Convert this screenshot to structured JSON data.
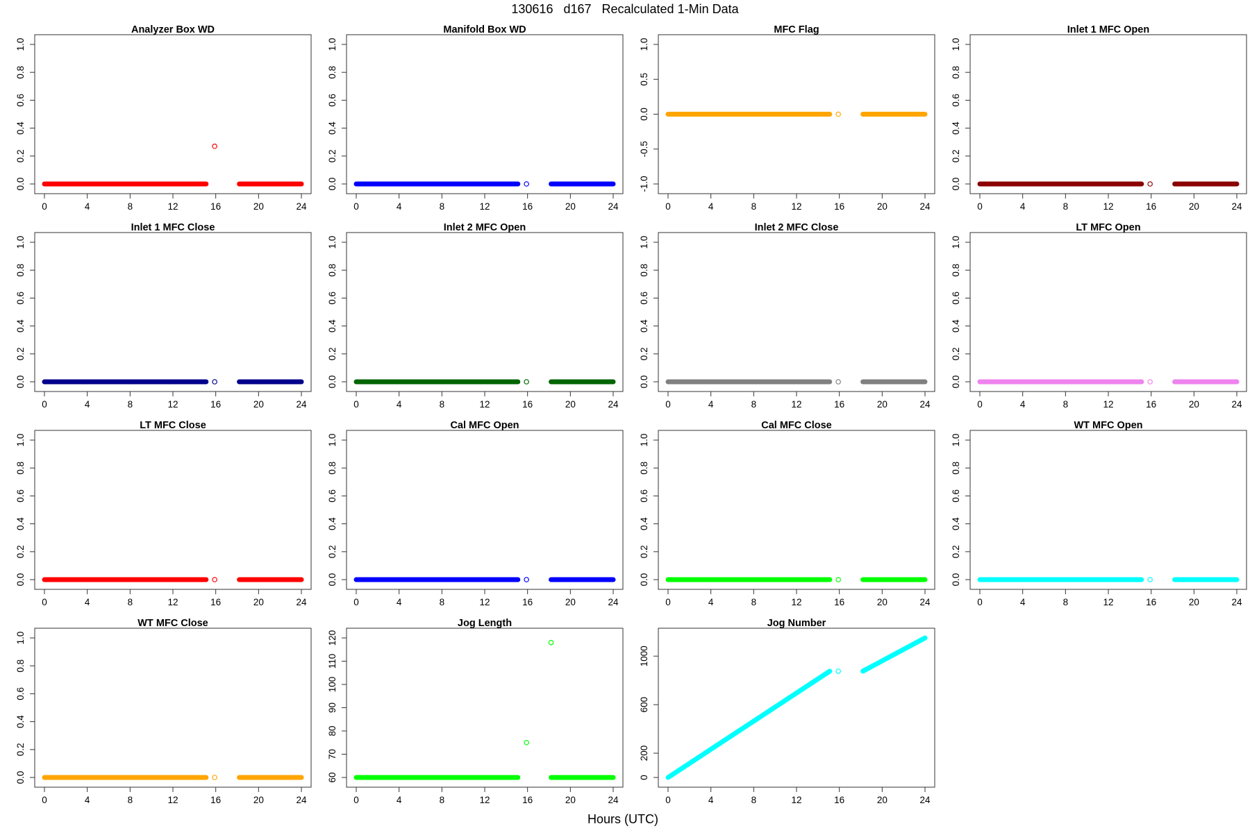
{
  "main_title": "130616   d167   Recalculated 1-Min Data",
  "xlabel": "Hours (UTC)",
  "chart_data": [
    {
      "type": "scatter",
      "title": "Analyzer Box WD",
      "color": "#FF0000",
      "xlim": [
        0,
        24
      ],
      "ylim": [
        0,
        1
      ],
      "xticks": [
        0,
        4,
        8,
        12,
        16,
        20,
        24
      ],
      "yticks": [
        0.0,
        0.2,
        0.4,
        0.6,
        0.8,
        1.0
      ],
      "ytick_labels": [
        "0.0",
        "0.2",
        "0.4",
        "0.6",
        "0.8",
        "1.0"
      ],
      "segments": [
        {
          "x": [
            0,
            15.1
          ],
          "y": [
            0,
            0
          ]
        },
        {
          "x": [
            18.2,
            24
          ],
          "y": [
            0,
            0
          ]
        }
      ],
      "points": [
        {
          "x": 15.9,
          "y": 0.27
        }
      ]
    },
    {
      "type": "scatter",
      "title": "Manifold Box WD",
      "color": "#0000FF",
      "xlim": [
        0,
        24
      ],
      "ylim": [
        0,
        1
      ],
      "xticks": [
        0,
        4,
        8,
        12,
        16,
        20,
        24
      ],
      "yticks": [
        0.0,
        0.2,
        0.4,
        0.6,
        0.8,
        1.0
      ],
      "ytick_labels": [
        "0.0",
        "0.2",
        "0.4",
        "0.6",
        "0.8",
        "1.0"
      ],
      "segments": [
        {
          "x": [
            0,
            15.1
          ],
          "y": [
            0,
            0
          ]
        },
        {
          "x": [
            18.2,
            24
          ],
          "y": [
            0,
            0
          ]
        }
      ],
      "points": [
        {
          "x": 15.9,
          "y": 0
        }
      ]
    },
    {
      "type": "scatter",
      "title": "MFC Flag",
      "color": "#FFA500",
      "xlim": [
        0,
        24
      ],
      "ylim": [
        -1,
        1
      ],
      "xticks": [
        0,
        4,
        8,
        12,
        16,
        20,
        24
      ],
      "yticks": [
        -1.0,
        -0.5,
        0.0,
        0.5,
        1.0
      ],
      "ytick_labels": [
        "-1.0",
        "-0.5",
        "0.0",
        "0.5",
        "1.0"
      ],
      "segments": [
        {
          "x": [
            0,
            15.1
          ],
          "y": [
            0,
            0
          ]
        },
        {
          "x": [
            18.2,
            24
          ],
          "y": [
            0,
            0
          ]
        }
      ],
      "points": [
        {
          "x": 15.9,
          "y": 0
        }
      ]
    },
    {
      "type": "scatter",
      "title": "Inlet 1 MFC Open",
      "color": "#8B0000",
      "xlim": [
        0,
        24
      ],
      "ylim": [
        0,
        1
      ],
      "xticks": [
        0,
        4,
        8,
        12,
        16,
        20,
        24
      ],
      "yticks": [
        0.0,
        0.2,
        0.4,
        0.6,
        0.8,
        1.0
      ],
      "ytick_labels": [
        "0.0",
        "0.2",
        "0.4",
        "0.6",
        "0.8",
        "1.0"
      ],
      "segments": [
        {
          "x": [
            0,
            15.1
          ],
          "y": [
            0,
            0
          ]
        },
        {
          "x": [
            18.2,
            24
          ],
          "y": [
            0,
            0
          ]
        }
      ],
      "points": [
        {
          "x": 15.9,
          "y": 0
        }
      ]
    },
    {
      "type": "scatter",
      "title": "Inlet 1 MFC Close",
      "color": "#00008B",
      "xlim": [
        0,
        24
      ],
      "ylim": [
        0,
        1
      ],
      "xticks": [
        0,
        4,
        8,
        12,
        16,
        20,
        24
      ],
      "yticks": [
        0.0,
        0.2,
        0.4,
        0.6,
        0.8,
        1.0
      ],
      "ytick_labels": [
        "0.0",
        "0.2",
        "0.4",
        "0.6",
        "0.8",
        "1.0"
      ],
      "segments": [
        {
          "x": [
            0,
            15.1
          ],
          "y": [
            0,
            0
          ]
        },
        {
          "x": [
            18.2,
            24
          ],
          "y": [
            0,
            0
          ]
        }
      ],
      "points": [
        {
          "x": 15.9,
          "y": 0
        }
      ]
    },
    {
      "type": "scatter",
      "title": "Inlet 2 MFC Open",
      "color": "#006400",
      "xlim": [
        0,
        24
      ],
      "ylim": [
        0,
        1
      ],
      "xticks": [
        0,
        4,
        8,
        12,
        16,
        20,
        24
      ],
      "yticks": [
        0.0,
        0.2,
        0.4,
        0.6,
        0.8,
        1.0
      ],
      "ytick_labels": [
        "0.0",
        "0.2",
        "0.4",
        "0.6",
        "0.8",
        "1.0"
      ],
      "segments": [
        {
          "x": [
            0,
            15.1
          ],
          "y": [
            0,
            0
          ]
        },
        {
          "x": [
            18.2,
            24
          ],
          "y": [
            0,
            0
          ]
        }
      ],
      "points": [
        {
          "x": 15.9,
          "y": 0
        }
      ]
    },
    {
      "type": "scatter",
      "title": "Inlet 2 MFC Close",
      "color": "#808080",
      "xlim": [
        0,
        24
      ],
      "ylim": [
        0,
        1
      ],
      "xticks": [
        0,
        4,
        8,
        12,
        16,
        20,
        24
      ],
      "yticks": [
        0.0,
        0.2,
        0.4,
        0.6,
        0.8,
        1.0
      ],
      "ytick_labels": [
        "0.0",
        "0.2",
        "0.4",
        "0.6",
        "0.8",
        "1.0"
      ],
      "segments": [
        {
          "x": [
            0,
            15.1
          ],
          "y": [
            0,
            0
          ]
        },
        {
          "x": [
            18.2,
            24
          ],
          "y": [
            0,
            0
          ]
        }
      ],
      "points": [
        {
          "x": 15.9,
          "y": 0
        }
      ]
    },
    {
      "type": "scatter",
      "title": "LT MFC Open",
      "color": "#EE82EE",
      "xlim": [
        0,
        24
      ],
      "ylim": [
        0,
        1
      ],
      "xticks": [
        0,
        4,
        8,
        12,
        16,
        20,
        24
      ],
      "yticks": [
        0.0,
        0.2,
        0.4,
        0.6,
        0.8,
        1.0
      ],
      "ytick_labels": [
        "0.0",
        "0.2",
        "0.4",
        "0.6",
        "0.8",
        "1.0"
      ],
      "segments": [
        {
          "x": [
            0,
            15.1
          ],
          "y": [
            0,
            0
          ]
        },
        {
          "x": [
            18.2,
            24
          ],
          "y": [
            0,
            0
          ]
        }
      ],
      "points": [
        {
          "x": 15.9,
          "y": 0
        }
      ]
    },
    {
      "type": "scatter",
      "title": "LT MFC Close",
      "color": "#FF0000",
      "xlim": [
        0,
        24
      ],
      "ylim": [
        0,
        1
      ],
      "xticks": [
        0,
        4,
        8,
        12,
        16,
        20,
        24
      ],
      "yticks": [
        0.0,
        0.2,
        0.4,
        0.6,
        0.8,
        1.0
      ],
      "ytick_labels": [
        "0.0",
        "0.2",
        "0.4",
        "0.6",
        "0.8",
        "1.0"
      ],
      "segments": [
        {
          "x": [
            0,
            15.1
          ],
          "y": [
            0,
            0
          ]
        },
        {
          "x": [
            18.2,
            24
          ],
          "y": [
            0,
            0
          ]
        }
      ],
      "points": [
        {
          "x": 15.9,
          "y": 0
        }
      ]
    },
    {
      "type": "scatter",
      "title": "Cal MFC Open",
      "color": "#0000FF",
      "xlim": [
        0,
        24
      ],
      "ylim": [
        0,
        1
      ],
      "xticks": [
        0,
        4,
        8,
        12,
        16,
        20,
        24
      ],
      "yticks": [
        0.0,
        0.2,
        0.4,
        0.6,
        0.8,
        1.0
      ],
      "ytick_labels": [
        "0.0",
        "0.2",
        "0.4",
        "0.6",
        "0.8",
        "1.0"
      ],
      "segments": [
        {
          "x": [
            0,
            15.1
          ],
          "y": [
            0,
            0
          ]
        },
        {
          "x": [
            18.2,
            24
          ],
          "y": [
            0,
            0
          ]
        }
      ],
      "points": [
        {
          "x": 15.9,
          "y": 0
        }
      ]
    },
    {
      "type": "scatter",
      "title": "Cal MFC Close",
      "color": "#00FF00",
      "xlim": [
        0,
        24
      ],
      "ylim": [
        0,
        1
      ],
      "xticks": [
        0,
        4,
        8,
        12,
        16,
        20,
        24
      ],
      "yticks": [
        0.0,
        0.2,
        0.4,
        0.6,
        0.8,
        1.0
      ],
      "ytick_labels": [
        "0.0",
        "0.2",
        "0.4",
        "0.6",
        "0.8",
        "1.0"
      ],
      "segments": [
        {
          "x": [
            0,
            15.1
          ],
          "y": [
            0,
            0
          ]
        },
        {
          "x": [
            18.2,
            24
          ],
          "y": [
            0,
            0
          ]
        }
      ],
      "points": [
        {
          "x": 15.9,
          "y": 0
        }
      ]
    },
    {
      "type": "scatter",
      "title": "WT MFC Open",
      "color": "#00FFFF",
      "xlim": [
        0,
        24
      ],
      "ylim": [
        0,
        1
      ],
      "xticks": [
        0,
        4,
        8,
        12,
        16,
        20,
        24
      ],
      "yticks": [
        0.0,
        0.2,
        0.4,
        0.6,
        0.8,
        1.0
      ],
      "ytick_labels": [
        "0.0",
        "0.2",
        "0.4",
        "0.6",
        "0.8",
        "1.0"
      ],
      "segments": [
        {
          "x": [
            0,
            15.1
          ],
          "y": [
            0,
            0
          ]
        },
        {
          "x": [
            18.2,
            24
          ],
          "y": [
            0,
            0
          ]
        }
      ],
      "points": [
        {
          "x": 15.9,
          "y": 0
        }
      ]
    },
    {
      "type": "scatter",
      "title": "WT MFC Close",
      "color": "#FFA500",
      "xlim": [
        0,
        24
      ],
      "ylim": [
        0,
        1
      ],
      "xticks": [
        0,
        4,
        8,
        12,
        16,
        20,
        24
      ],
      "yticks": [
        0.0,
        0.2,
        0.4,
        0.6,
        0.8,
        1.0
      ],
      "ytick_labels": [
        "0.0",
        "0.2",
        "0.4",
        "0.6",
        "0.8",
        "1.0"
      ],
      "segments": [
        {
          "x": [
            0,
            15.1
          ],
          "y": [
            0,
            0
          ]
        },
        {
          "x": [
            18.2,
            24
          ],
          "y": [
            0,
            0
          ]
        }
      ],
      "points": [
        {
          "x": 15.9,
          "y": 0
        }
      ]
    },
    {
      "type": "scatter",
      "title": "Jog Length",
      "color": "#00FF00",
      "xlim": [
        0,
        24
      ],
      "ylim": [
        60,
        120
      ],
      "xticks": [
        0,
        4,
        8,
        12,
        16,
        20,
        24
      ],
      "yticks": [
        60,
        70,
        80,
        90,
        100,
        110,
        120
      ],
      "ytick_labels": [
        "60",
        "70",
        "80",
        "90",
        "100",
        "110",
        "120"
      ],
      "segments": [
        {
          "x": [
            0,
            15.1
          ],
          "y": [
            60,
            60
          ]
        },
        {
          "x": [
            18.2,
            24
          ],
          "y": [
            60,
            60
          ]
        }
      ],
      "points": [
        {
          "x": 15.9,
          "y": 75
        },
        {
          "x": 18.2,
          "y": 118
        }
      ]
    },
    {
      "type": "scatter",
      "title": "Jog Number",
      "color": "#00FFFF",
      "xlim": [
        0,
        24
      ],
      "ylim": [
        0,
        1150
      ],
      "xticks": [
        0,
        4,
        8,
        12,
        16,
        20,
        24
      ],
      "yticks": [
        0,
        200,
        600,
        1000
      ],
      "ytick_labels": [
        "0",
        "200",
        "600",
        "1000"
      ],
      "segments": [
        {
          "x": [
            0,
            15.1
          ],
          "y": [
            0,
            876
          ]
        },
        {
          "x": [
            18.2,
            24
          ],
          "y": [
            876,
            1150
          ]
        }
      ],
      "points": [
        {
          "x": 15.9,
          "y": 876
        }
      ]
    }
  ]
}
